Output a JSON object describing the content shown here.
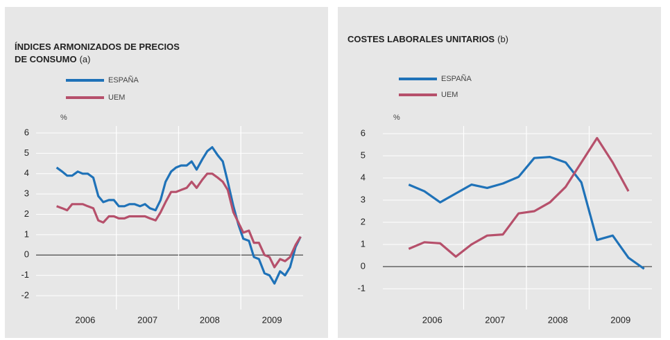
{
  "chart_data": [
    {
      "type": "line",
      "title_lines": [
        "ÍNDICES ARMONIZADOS DE PRECIOS",
        "DE CONSUMO"
      ],
      "title_note": "(a)",
      "y_label": "%",
      "x": [
        2006.04,
        2006.13,
        2006.21,
        2006.29,
        2006.38,
        2006.46,
        2006.54,
        2006.63,
        2006.71,
        2006.79,
        2006.88,
        2006.96,
        2007.04,
        2007.13,
        2007.21,
        2007.29,
        2007.38,
        2007.46,
        2007.54,
        2007.63,
        2007.71,
        2007.79,
        2007.88,
        2007.96,
        2008.04,
        2008.13,
        2008.21,
        2008.29,
        2008.38,
        2008.46,
        2008.54,
        2008.63,
        2008.71,
        2008.79,
        2008.88,
        2008.96,
        2009.04,
        2009.13,
        2009.21,
        2009.29,
        2009.38,
        2009.46,
        2009.54,
        2009.63,
        2009.71,
        2009.79,
        2009.88,
        2009.96
      ],
      "series": [
        {
          "name": "ESPAÑA",
          "color": "#1f72b8",
          "values": [
            4.3,
            4.1,
            3.9,
            3.9,
            4.1,
            4.0,
            4.0,
            3.8,
            2.9,
            2.6,
            2.7,
            2.7,
            2.4,
            2.4,
            2.5,
            2.5,
            2.4,
            2.5,
            2.3,
            2.2,
            2.7,
            3.6,
            4.1,
            4.3,
            4.4,
            4.4,
            4.6,
            4.2,
            4.7,
            5.1,
            5.3,
            4.9,
            4.6,
            3.6,
            2.4,
            1.5,
            0.8,
            0.7,
            -0.1,
            -0.2,
            -0.9,
            -1.0,
            -1.4,
            -0.8,
            -1.0,
            -0.6,
            0.4,
            0.9
          ]
        },
        {
          "name": "UEM",
          "color": "#b6506b",
          "values": [
            2.4,
            2.3,
            2.2,
            2.5,
            2.5,
            2.5,
            2.4,
            2.3,
            1.7,
            1.6,
            1.9,
            1.9,
            1.8,
            1.8,
            1.9,
            1.9,
            1.9,
            1.9,
            1.8,
            1.7,
            2.1,
            2.6,
            3.1,
            3.1,
            3.2,
            3.3,
            3.6,
            3.3,
            3.7,
            4.0,
            4.0,
            3.8,
            3.6,
            3.2,
            2.1,
            1.6,
            1.1,
            1.2,
            0.6,
            0.6,
            0.0,
            -0.1,
            -0.6,
            -0.2,
            -0.3,
            -0.1,
            0.5,
            0.9
          ]
        }
      ],
      "xlim": [
        2006,
        2010
      ],
      "xticks": [
        2007,
        2008,
        2009
      ],
      "year_labels": [
        "2006",
        "2007",
        "2008",
        "2009"
      ],
      "ylim": [
        -2,
        6
      ],
      "yticks": [
        -2,
        -1,
        0,
        1,
        2,
        3,
        4,
        5,
        6
      ]
    },
    {
      "type": "line",
      "title_lines": [
        "COSTES LABORALES UNITARIOS"
      ],
      "title_note": "(b)",
      "y_label": "%",
      "x": [
        2006.125,
        2006.375,
        2006.625,
        2006.875,
        2007.125,
        2007.375,
        2007.625,
        2007.875,
        2008.125,
        2008.375,
        2008.625,
        2008.875,
        2009.125,
        2009.375,
        2009.625,
        2009.875
      ],
      "series": [
        {
          "name": "ESPAÑA",
          "color": "#1f72b8",
          "values": [
            3.7,
            3.4,
            2.9,
            3.3,
            3.7,
            3.55,
            3.75,
            4.05,
            4.9,
            4.95,
            4.7,
            3.8,
            1.2,
            1.4,
            0.4,
            -0.1
          ]
        },
        {
          "name": "UEM",
          "color": "#b6506b",
          "values": [
            0.8,
            1.1,
            1.05,
            0.45,
            1.0,
            1.4,
            1.45,
            2.4,
            2.5,
            2.9,
            3.6,
            4.7,
            5.8,
            4.7,
            3.4,
            null
          ]
        }
      ],
      "xlim": [
        2006,
        2010
      ],
      "xticks": [
        2007,
        2008,
        2009
      ],
      "year_labels": [
        "2006",
        "2007",
        "2008",
        "2009"
      ],
      "ylim": [
        -1,
        6
      ],
      "yticks": [
        -1,
        0,
        1,
        2,
        3,
        4,
        5,
        6
      ]
    }
  ]
}
